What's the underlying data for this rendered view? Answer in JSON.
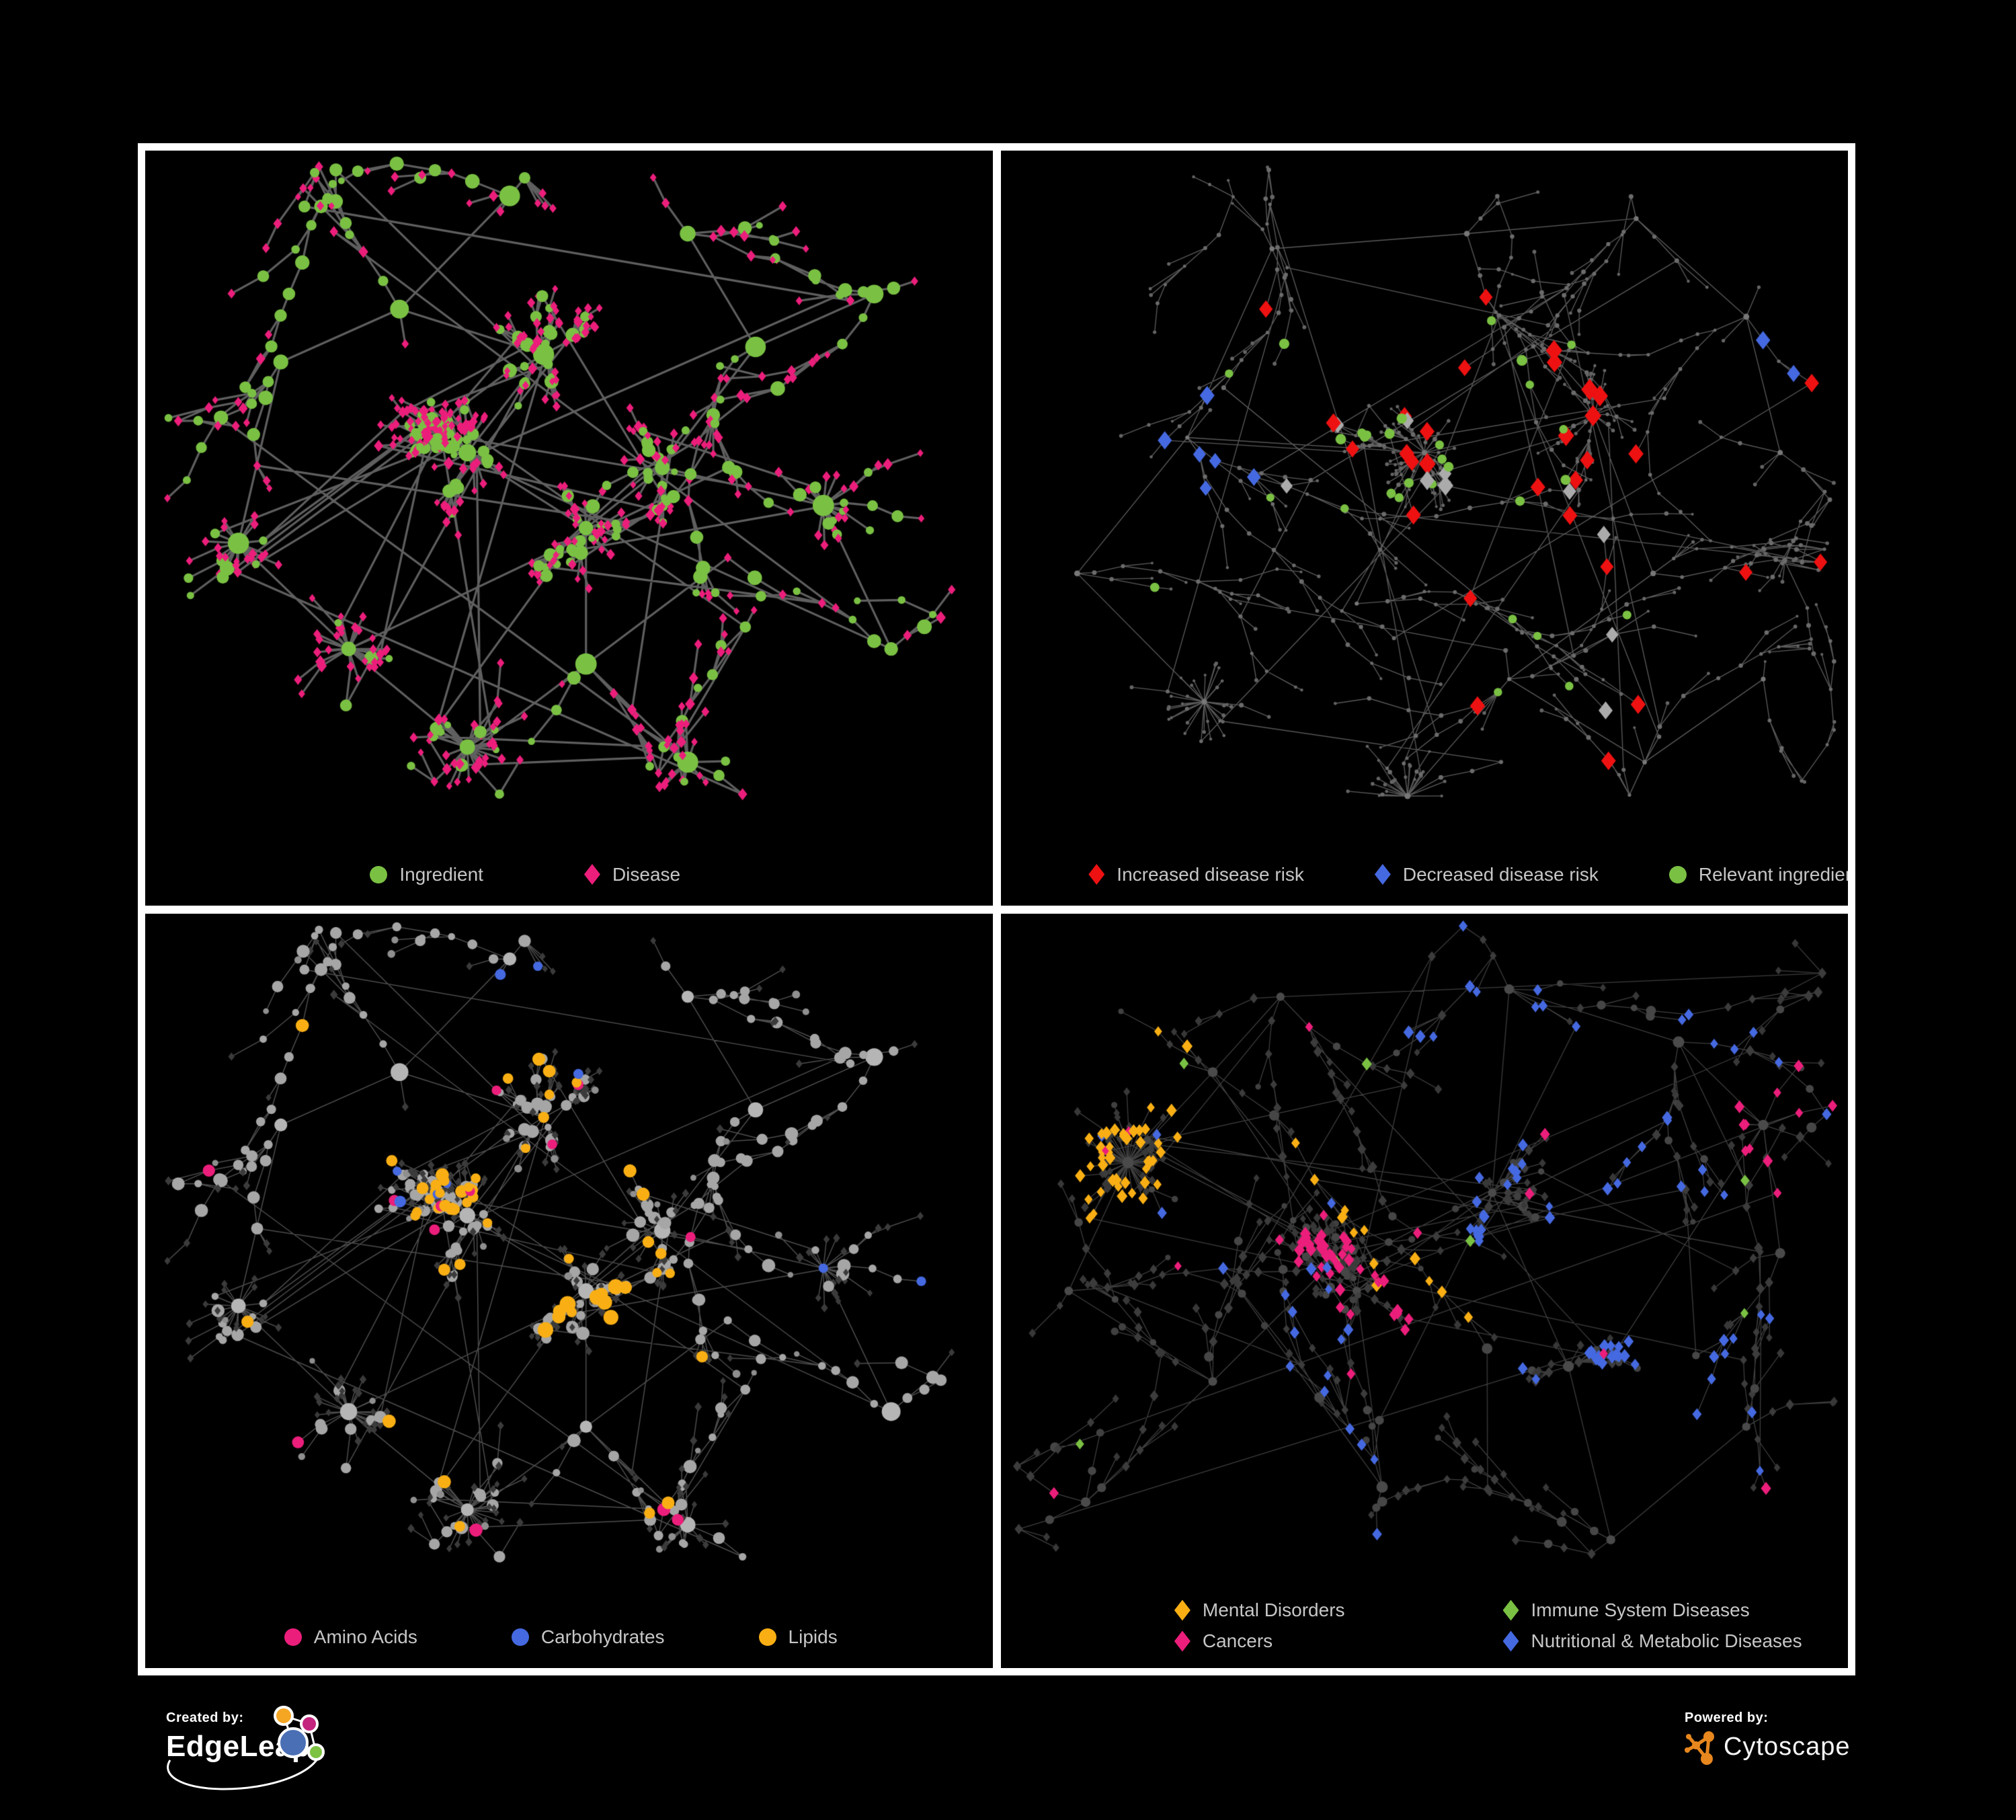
{
  "figure": {
    "background": "#000000",
    "frame_color": "#FFFFFF"
  },
  "colors": {
    "green": "#7AC143",
    "pink": "#EC1E7B",
    "red": "#EE1111",
    "blue": "#4569E0",
    "orange": "#F9AF14",
    "highlight_gray": "#ABABAB",
    "legend_text": "#C6C6C6"
  },
  "panels": [
    {
      "name": "ingredient-disease-network",
      "legend": [
        {
          "label": "Ingredient",
          "shape": "circle",
          "color": "#7AC143"
        },
        {
          "label": "Disease",
          "shape": "diamond",
          "color": "#EC1E7B"
        }
      ],
      "network": {
        "layout": "A",
        "edge": {
          "color": "rgba(105,105,105,0.9)",
          "width": 3.2
        },
        "style": {
          "seed": 11,
          "hub": {
            "shape": "circle",
            "color": "#7AC143",
            "r": [
              10,
              16
            ]
          },
          "internal": [
            {
              "shape": "circle",
              "color": "#7AC143",
              "r": [
                5.5,
                11
              ],
              "p": 0.6
            },
            {
              "shape": "diamond",
              "color": "#EC1E7B",
              "r": [
                6,
                8.5
              ],
              "p": 0.4
            }
          ],
          "leaf": [
            {
              "shape": "diamond",
              "color": "#EC1E7B",
              "r": [
                5,
                7
              ],
              "p": 0.88
            },
            {
              "shape": "circle",
              "color": "#7AC143",
              "r": [
                5,
                7.5
              ],
              "p": 0.12
            }
          ]
        }
      }
    },
    {
      "name": "disease-risk-network",
      "legend": [
        {
          "label": "Increased disease risk",
          "shape": "diamond",
          "color": "#EE1111"
        },
        {
          "label": "Decreased disease risk",
          "shape": "diamond",
          "color": "#4569E0"
        },
        {
          "label": "Relevant ingredient",
          "shape": "circle",
          "color": "#7AC143"
        }
      ],
      "network": {
        "layout": "B",
        "edge": {
          "color": "rgba(150,150,150,0.6)",
          "width": 1.35
        },
        "style": {
          "seed": 22,
          "hub": {
            "shape": "circle",
            "color": "#777777",
            "r": [
              3,
              4.5
            ]
          },
          "internal": [
            {
              "shape": "circle",
              "color": "#6B6B6B",
              "r": [
                2.4,
                3.6
              ],
              "p": 1
            }
          ],
          "leaf": [
            {
              "shape": "circle",
              "color": "#646464",
              "r": [
                2,
                3
              ],
              "p": 1
            }
          ],
          "highlights": [
            {
              "count": 24,
              "region": [
                0.3,
                0.18,
                0.76,
                0.6
              ],
              "shape": "diamond",
              "color": "#EE1111",
              "r": [
                11,
                14
              ]
            },
            {
              "count": 3,
              "region": [
                0.52,
                0.7,
                0.8,
                0.86
              ],
              "shape": "diamond",
              "color": "#EE1111",
              "r": [
                11,
                13
              ]
            },
            {
              "count": 3,
              "region": [
                0.85,
                0.15,
                0.99,
                0.6
              ],
              "shape": "diamond",
              "color": "#EE1111",
              "r": [
                11,
                13
              ]
            },
            {
              "count": 6,
              "region": [
                0.14,
                0.3,
                0.3,
                0.5
              ],
              "shape": "diamond",
              "color": "#4569E0",
              "r": [
                10,
                13
              ]
            },
            {
              "count": 2,
              "region": [
                0.83,
                0.24,
                0.94,
                0.33
              ],
              "shape": "diamond",
              "color": "#4569E0",
              "r": [
                10,
                12
              ]
            },
            {
              "count": 8,
              "region": [
                0.22,
                0.28,
                0.74,
                0.64
              ],
              "shape": "diamond",
              "color": "#ABABAB",
              "r": [
                10,
                13
              ]
            },
            {
              "count": 2,
              "region": [
                0.7,
                0.6,
                0.94,
                0.78
              ],
              "shape": "diamond",
              "color": "#ABABAB",
              "r": [
                10,
                12
              ]
            },
            {
              "count": 25,
              "region": [
                0.12,
                0.22,
                0.68,
                0.58
              ],
              "shape": "circle",
              "color": "#7AC143",
              "r": [
                6,
                8
              ]
            },
            {
              "count": 5,
              "region": [
                0.55,
                0.56,
                0.82,
                0.74
              ],
              "shape": "circle",
              "color": "#7AC143",
              "r": [
                6,
                8
              ]
            }
          ]
        }
      }
    },
    {
      "name": "ingredient-class-network",
      "legend": [
        {
          "label": "Amino Acids",
          "shape": "circle",
          "color": "#EC1E7B"
        },
        {
          "label": "Carbohydrates",
          "shape": "circle",
          "color": "#4569E0"
        },
        {
          "label": "Lipids",
          "shape": "circle",
          "color": "#F9AF14"
        }
      ],
      "network": {
        "layout": "A",
        "edge": {
          "color": "rgba(170,170,170,0.45)",
          "width": 1.5
        },
        "style": {
          "seed": 33,
          "hub": {
            "shape": "circle",
            "color": "#B5B5B5",
            "r": [
              9,
              14
            ]
          },
          "internal": [
            {
              "shape": "circle",
              "color": "#A6A6A6",
              "r": [
                5,
                10
              ],
              "p": 0.92
            },
            {
              "shape": "diamond",
              "color": "#3B3B3B",
              "r": [
                5,
                6.5
              ],
              "p": 0.08
            }
          ],
          "leaf": [
            {
              "shape": "diamond",
              "color": "#3B3B3B",
              "r": [
                4.5,
                6
              ],
              "p": 0.9
            },
            {
              "shape": "circle",
              "color": "#8F8F8F",
              "r": [
                4,
                6
              ],
              "p": 0.1
            }
          ],
          "highlights": [
            {
              "count": 38,
              "region": [
                0.18,
                0.1,
                0.62,
                0.48
              ],
              "shape": "circle",
              "color": "#F9AF14",
              "r": [
                7,
                10
              ]
            },
            {
              "count": 10,
              "region": [
                0.47,
                0.48,
                0.62,
                0.62
              ],
              "shape": "circle",
              "color": "#F9AF14",
              "r": [
                9,
                12
              ]
            },
            {
              "count": 8,
              "region": [
                0.05,
                0.5,
                0.95,
                0.88
              ],
              "shape": "circle",
              "color": "#F9AF14",
              "r": [
                7,
                10
              ]
            },
            {
              "count": 13,
              "region": [
                0.04,
                0.22,
                0.96,
                0.92
              ],
              "shape": "circle",
              "color": "#EC1E7B",
              "r": [
                7,
                10
              ]
            },
            {
              "count": 7,
              "region": [
                0.15,
                0.04,
                0.72,
                0.4
              ],
              "shape": "circle",
              "color": "#4569E0",
              "r": [
                6,
                9
              ]
            },
            {
              "count": 2,
              "region": [
                0.75,
                0.4,
                0.96,
                0.58
              ],
              "shape": "circle",
              "color": "#4569E0",
              "r": [
                6,
                8
              ]
            }
          ]
        }
      }
    },
    {
      "name": "disease-class-network",
      "legend": [
        {
          "label": "Mental Disorders",
          "shape": "diamond",
          "color": "#F9AF14"
        },
        {
          "label": "Immune System Diseases",
          "shape": "diamond",
          "color": "#7AC143"
        },
        {
          "label": "Cancers",
          "shape": "diamond",
          "color": "#EC1E7B"
        },
        {
          "label": "Nutritional & Metabolic Diseases",
          "shape": "diamond",
          "color": "#4569E0"
        }
      ],
      "network": {
        "layout": "C",
        "edge": {
          "color": "rgba(155,155,155,0.4)",
          "width": 1.3
        },
        "style": {
          "seed": 44,
          "hub": {
            "shape": "circle",
            "color": "#4A4A4A",
            "r": [
              6,
              9
            ]
          },
          "internal": [
            {
              "shape": "diamond",
              "color": "#3C3C3C",
              "r": [
                5.5,
                7.5
              ],
              "p": 0.72
            },
            {
              "shape": "circle",
              "color": "#464646",
              "r": [
                4.5,
                8
              ],
              "p": 0.28
            }
          ],
          "leaf": [
            {
              "shape": "diamond",
              "color": "#383838",
              "r": [
                5,
                6.5
              ],
              "p": 0.85
            },
            {
              "shape": "circle",
              "color": "#404040",
              "r": [
                4,
                6
              ],
              "p": 0.15
            }
          ],
          "tags": {
            "mental": {
              "p": 0.55,
              "shape": "diamond",
              "color": "#F9AF14",
              "r": [
                6.5,
                9
              ]
            },
            "cancer": {
              "p": 0.4,
              "shape": "diamond",
              "color": "#EC1E7B",
              "r": [
                6.5,
                9
              ]
            },
            "cancer2": {
              "p": 0.65,
              "shape": "diamond",
              "color": "#EC1E7B",
              "r": [
                6.5,
                9
              ]
            },
            "nutri": {
              "p": 0.3,
              "shape": "diamond",
              "color": "#4569E0",
              "r": [
                6.5,
                9
              ]
            },
            "nutri3": {
              "p": 0.25,
              "shape": "diamond",
              "color": "#4569E0",
              "r": [
                6.5,
                9
              ]
            }
          },
          "sprinkles": [
            {
              "p": 0.012,
              "shape": "diamond",
              "color": "#7AC143",
              "r": [
                6.5,
                8.5
              ]
            },
            {
              "p": 0.035,
              "shape": "diamond",
              "color": "#4569E0",
              "r": [
                6,
                8.5
              ]
            },
            {
              "p": 0.022,
              "shape": "diamond",
              "color": "#EC1E7B",
              "r": [
                6,
                8.5
              ]
            },
            {
              "p": 0.015,
              "shape": "diamond",
              "color": "#F9AF14",
              "r": [
                6,
                8.5
              ]
            }
          ]
        }
      }
    }
  ],
  "layouts": {
    "A": {
      "seed": 1337,
      "extra": 45,
      "clusters": [
        [
          0.38,
          0.4,
          150,
          "blob"
        ],
        [
          0.47,
          0.27,
          70,
          "blob"
        ],
        [
          0.52,
          0.5,
          60,
          "blob"
        ],
        [
          0.3,
          0.21,
          35,
          "tree"
        ],
        [
          0.16,
          0.28,
          25,
          "tree"
        ],
        [
          0.11,
          0.52,
          30,
          "burst"
        ],
        [
          0.24,
          0.66,
          35,
          "burst"
        ],
        [
          0.38,
          0.79,
          45,
          "burst"
        ],
        [
          0.52,
          0.68,
          30,
          "tree"
        ],
        [
          0.61,
          0.42,
          40,
          "blob"
        ],
        [
          0.72,
          0.26,
          40,
          "tree"
        ],
        [
          0.86,
          0.19,
          25,
          "tree"
        ],
        [
          0.8,
          0.47,
          30,
          "burst"
        ],
        [
          0.64,
          0.11,
          25,
          "tree"
        ],
        [
          0.43,
          0.06,
          20,
          "tree"
        ],
        [
          0.88,
          0.66,
          18,
          "tree"
        ],
        [
          0.64,
          0.81,
          25,
          "burst"
        ]
      ]
    },
    "B": {
      "seed": 4242,
      "extra": 30,
      "clusters": [
        [
          0.5,
          0.4,
          100,
          "blob"
        ],
        [
          0.22,
          0.38,
          70,
          "tree"
        ],
        [
          0.09,
          0.56,
          30,
          "tree"
        ],
        [
          0.32,
          0.13,
          55,
          "tree"
        ],
        [
          0.55,
          0.11,
          50,
          "tree"
        ],
        [
          0.75,
          0.09,
          40,
          "tree"
        ],
        [
          0.88,
          0.22,
          35,
          "tree"
        ],
        [
          0.92,
          0.4,
          25,
          "tree"
        ],
        [
          0.7,
          0.35,
          45,
          "blob"
        ],
        [
          0.77,
          0.56,
          35,
          "tree"
        ],
        [
          0.6,
          0.7,
          35,
          "tree"
        ],
        [
          0.42,
          0.6,
          40,
          "tree"
        ],
        [
          0.24,
          0.73,
          35,
          "burst"
        ],
        [
          0.48,
          0.86,
          30,
          "burst"
        ],
        [
          0.76,
          0.81,
          30,
          "tree"
        ],
        [
          0.9,
          0.7,
          20,
          "tree"
        ]
      ]
    },
    "C": {
      "seed": 9001,
      "extra": 40,
      "clusters": [
        [
          0.15,
          0.33,
          90,
          "burst",
          "mental"
        ],
        [
          0.25,
          0.21,
          35,
          "tree",
          "mental"
        ],
        [
          0.08,
          0.5,
          30,
          "tree"
        ],
        [
          0.42,
          0.5,
          110,
          "blob",
          "cancer"
        ],
        [
          0.58,
          0.37,
          55,
          "blob",
          "nutri"
        ],
        [
          0.33,
          0.11,
          40,
          "tree"
        ],
        [
          0.6,
          0.1,
          45,
          "tree",
          "nutri"
        ],
        [
          0.8,
          0.17,
          40,
          "tree",
          "nutri"
        ],
        [
          0.9,
          0.28,
          14,
          "burst",
          "cancer2"
        ],
        [
          0.92,
          0.45,
          25,
          "tree",
          "nutri"
        ],
        [
          0.25,
          0.62,
          40,
          "tree"
        ],
        [
          0.45,
          0.76,
          45,
          "tree",
          "nutri3"
        ],
        [
          0.67,
          0.6,
          45,
          "blob",
          "nutri"
        ],
        [
          0.72,
          0.83,
          35,
          "tree"
        ],
        [
          0.88,
          0.68,
          25,
          "tree"
        ],
        [
          0.1,
          0.78,
          25,
          "tree"
        ]
      ]
    }
  },
  "footer": {
    "created_by": {
      "label": "Created by:",
      "brand": "EdgeLeap"
    },
    "powered_by": {
      "label": "Powered by:",
      "brand": "Cytoscape",
      "brand_color": "#E8871E"
    }
  }
}
